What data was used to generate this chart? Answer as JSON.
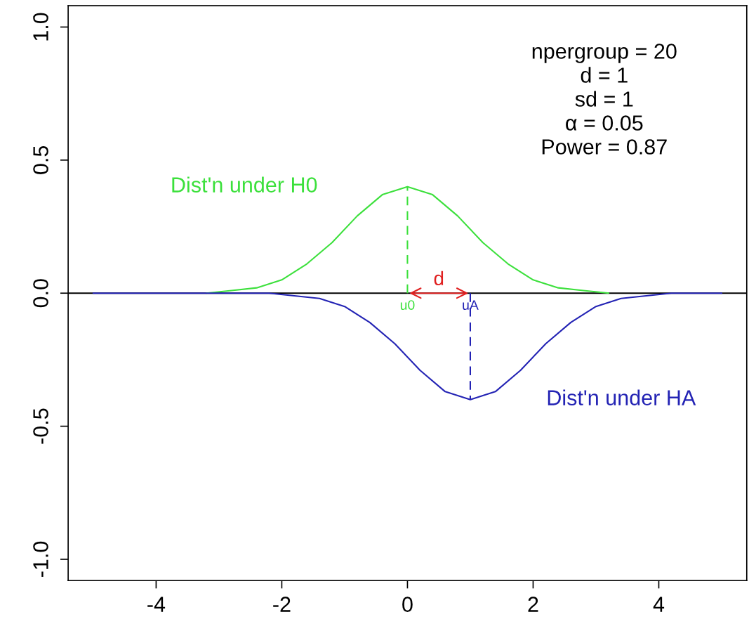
{
  "chart_data": {
    "type": "line",
    "xlim": [
      -5.4,
      5.4
    ],
    "ylim": [
      -1.08,
      1.08
    ],
    "xticks": [
      -4,
      -2,
      0,
      2,
      4
    ],
    "yticks": [
      {
        "value": -1,
        "label": "-1.0"
      },
      {
        "value": -0.5,
        "label": "-0.5"
      },
      {
        "value": 0,
        "label": "0.0"
      },
      {
        "value": 0.5,
        "label": "0.5"
      },
      {
        "value": 1,
        "label": "1.0"
      }
    ],
    "grid": false,
    "legend": false,
    "series": [
      {
        "name": "Dist'n under H0",
        "color": "#3ce03c",
        "x": [
          -3.2,
          -2.8,
          -2.4,
          -2.0,
          -1.6,
          -1.2,
          -0.8,
          -0.4,
          0,
          0.4,
          0.8,
          1.2,
          1.6,
          2.0,
          2.4,
          2.8,
          3.2
        ],
        "values": [
          0.0,
          0.01,
          0.02,
          0.05,
          0.11,
          0.19,
          0.29,
          0.37,
          0.4,
          0.37,
          0.29,
          0.19,
          0.11,
          0.05,
          0.02,
          0.01,
          0.0
        ]
      },
      {
        "name": "Dist'n under HA",
        "color": "#2323b4",
        "x": [
          -5,
          -4.6,
          -4.2,
          -3.8,
          -3.4,
          -3,
          -2.6,
          -2.2,
          -1.8,
          -1.4,
          -1,
          -0.6,
          -0.2,
          0.2,
          0.6,
          1,
          1.4,
          1.8,
          2.2,
          2.6,
          3,
          3.4,
          3.8,
          4.2,
          4.6,
          5
        ],
        "values": [
          0,
          0,
          0,
          0,
          0,
          0,
          0,
          0,
          -0.01,
          -0.02,
          -0.05,
          -0.11,
          -0.19,
          -0.29,
          -0.37,
          -0.4,
          -0.37,
          -0.29,
          -0.19,
          -0.11,
          -0.05,
          -0.02,
          -0.01,
          0,
          0,
          0
        ]
      },
      {
        "name": "u0",
        "color": "#3ce03c",
        "line_style": "dashed",
        "x": [
          0,
          0
        ],
        "values": [
          0,
          0.4
        ]
      },
      {
        "name": "uA",
        "color": "#2323b4",
        "line_style": "dashed",
        "x": [
          1,
          1
        ],
        "values": [
          0,
          -0.4
        ]
      }
    ],
    "ref_lines": [
      {
        "axis": "y",
        "value": 0,
        "color": "#000000"
      }
    ],
    "annotations": [
      {
        "text": "d",
        "x": 0.5,
        "y": 0
      },
      "npergroup = 20",
      "d = 1",
      "sd = 1",
      "α = 0.05",
      "Power = 0.87"
    ]
  }
}
